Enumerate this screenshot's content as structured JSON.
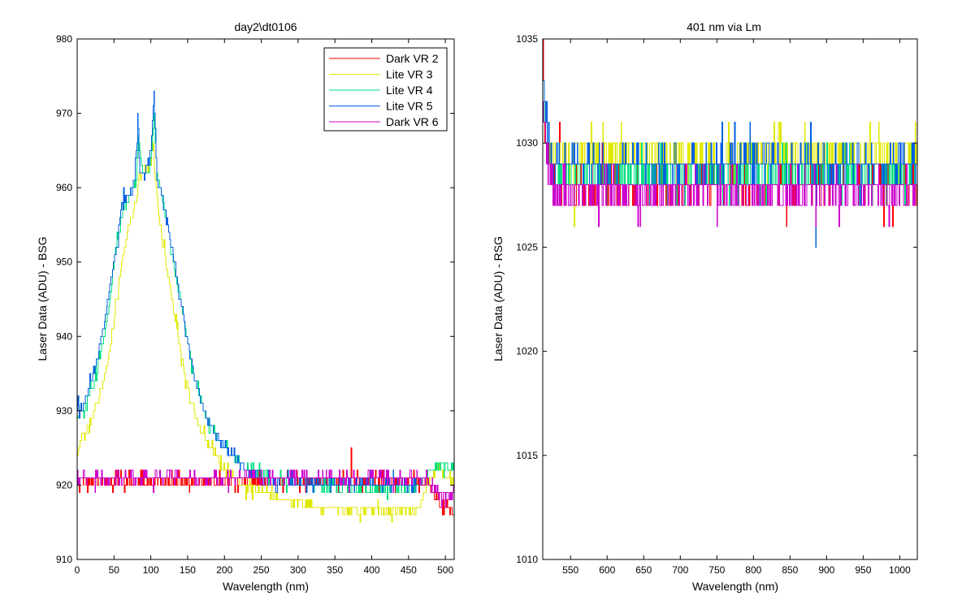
{
  "chart_data": [
    {
      "type": "line",
      "title": "day2\\dt0106",
      "xlabel": "Wavelength (nm)",
      "ylabel": "Laser Data (ADU) - BSG",
      "xlim": [
        0,
        512
      ],
      "ylim": [
        910,
        980
      ],
      "xticks": [
        0,
        50,
        100,
        150,
        200,
        250,
        300,
        350,
        400,
        450,
        500
      ],
      "yticks": [
        910,
        920,
        930,
        940,
        950,
        960,
        970,
        980
      ],
      "grid": false,
      "legend": "top-right",
      "series": [
        {
          "name": "Dark VR 2",
          "color": "#ff0000",
          "kind": "noise",
          "x": [
            0,
            460,
            475,
            490,
            512
          ],
          "y": [
            920.5,
            920.7,
            920.5,
            917.5,
            916.5
          ],
          "amp": 0.6,
          "seed": 7,
          "spikes": [
            [
              372,
              925
            ]
          ]
        },
        {
          "name": "Lite VR 3",
          "color": "#e0e800",
          "kind": "peak",
          "x": [
            0,
            5,
            10,
            20,
            30,
            40,
            50,
            60,
            70,
            80,
            85,
            90,
            95,
            100,
            103,
            105,
            110,
            115,
            120,
            130,
            140,
            150,
            160,
            175,
            200,
            225,
            250,
            275,
            300,
            325,
            350,
            400,
            450,
            465,
            470,
            480,
            490,
            500,
            512
          ],
          "y": [
            924,
            926.5,
            927,
            929,
            932,
            936,
            942,
            950,
            955,
            958,
            962,
            963,
            962,
            963,
            967,
            962,
            957,
            953,
            950,
            944,
            938,
            933,
            929,
            926,
            922,
            920,
            919,
            918,
            917.5,
            917,
            916.8,
            916.5,
            916.5,
            917,
            919,
            921,
            923,
            921,
            920.5
          ],
          "amp": 0.5,
          "seed": 11
        },
        {
          "name": "Lite VR 4",
          "color": "#00e080",
          "kind": "peak",
          "x": [
            0,
            5,
            10,
            20,
            30,
            40,
            50,
            60,
            70,
            80,
            83,
            88,
            95,
            100,
            104,
            108,
            115,
            120,
            130,
            140,
            150,
            160,
            175,
            200,
            225,
            250,
            275,
            300,
            350,
            400,
            450,
            465,
            470,
            480,
            490,
            500,
            512
          ],
          "y": [
            929,
            930,
            930.5,
            933,
            937,
            942,
            950,
            956,
            959,
            961,
            967,
            962,
            962,
            964,
            970,
            962,
            959,
            956,
            950,
            945,
            939,
            934,
            929,
            925,
            922.5,
            921.5,
            920.5,
            920,
            919.8,
            919.5,
            919.5,
            920,
            921,
            922,
            922.5,
            922.5,
            922.5
          ],
          "amp": 0.5,
          "seed": 23
        },
        {
          "name": "Lite VR 5",
          "color": "#0060e0",
          "kind": "peak",
          "x": [
            0,
            1,
            3,
            8,
            15,
            25,
            35,
            45,
            55,
            60,
            70,
            78,
            82,
            85,
            90,
            95,
            100,
            104,
            108,
            115,
            120,
            130,
            140,
            150,
            160,
            175,
            200,
            230,
            260,
            300,
            350,
            400,
            450,
            460
          ],
          "y": [
            930,
            932,
            929.5,
            930.5,
            933,
            936,
            941,
            947,
            953,
            958,
            959,
            961,
            970,
            962,
            962,
            963,
            965,
            973,
            961,
            959,
            957,
            951,
            945,
            939,
            934,
            929,
            925,
            922,
            921,
            920.5,
            920.3,
            920.2,
            920.2,
            920.2
          ],
          "amp": 0.5,
          "seed": 31
        },
        {
          "name": "Dark VR 6",
          "color": "#cc00cc",
          "kind": "noise",
          "x": [
            0,
            1,
            3,
            460,
            475,
            490,
            500,
            512
          ],
          "y": [
            922.5,
            919.5,
            921,
            921,
            920.5,
            919,
            918.5,
            919
          ],
          "amp": 0.6,
          "seed": 41
        }
      ]
    },
    {
      "type": "line",
      "title": "401 nm via Lm",
      "xlabel": "Wavelength (nm)",
      "ylabel": "Laser Data (ADU) - RSG",
      "xlim": [
        512,
        1024
      ],
      "ylim": [
        1010,
        1035
      ],
      "xticks": [
        550,
        600,
        650,
        700,
        750,
        800,
        850,
        900,
        950,
        1000
      ],
      "yticks": [
        1010,
        1015,
        1020,
        1025,
        1030,
        1035
      ],
      "grid": false,
      "legend": "none",
      "series": [
        {
          "name": "Dark VR 2",
          "color": "#ff0000",
          "kind": "noise",
          "x": [
            512,
            514,
            518,
            525,
            1024
          ],
          "y": [
            1035,
            1031,
            1029.5,
            1028,
            1028
          ],
          "amp": 0.6,
          "seed": 51,
          "spikes": [
            [
              535,
              1031
            ],
            [
              990,
              1026
            ]
          ]
        },
        {
          "name": "Lite VR 3",
          "color": "#e0e800",
          "kind": "noise",
          "x": [
            512,
            518,
            525,
            1024
          ],
          "y": [
            1033,
            1030,
            1029.5,
            1029.5
          ],
          "amp": 0.6,
          "seed": 57,
          "spikes": [
            [
              555,
              1026
            ],
            [
              835,
              1031
            ],
            [
              870,
              1031
            ]
          ]
        },
        {
          "name": "Lite VR 4",
          "color": "#00e080",
          "kind": "noise",
          "x": [
            512,
            518,
            525,
            1024
          ],
          "y": [
            1033,
            1029.5,
            1028.5,
            1028.3
          ],
          "amp": 0.6,
          "seed": 61
        },
        {
          "name": "Lite VR 5",
          "color": "#0060e0",
          "kind": "noise",
          "x": [
            512,
            518,
            525,
            1024
          ],
          "y": [
            1033.5,
            1030,
            1029,
            1029
          ],
          "amp": 0.6,
          "seed": 67,
          "spikes": [
            [
              885,
              1025
            ]
          ]
        },
        {
          "name": "Dark VR 6",
          "color": "#cc00cc",
          "kind": "noise",
          "x": [
            512,
            518,
            525,
            1024
          ],
          "y": [
            1032,
            1029,
            1027.8,
            1027.6
          ],
          "amp": 0.6,
          "seed": 71,
          "spikes": [
            [
              588,
              1026
            ],
            [
              645,
              1026
            ],
            [
              750,
              1026
            ],
            [
              885,
              1026
            ],
            [
              985,
              1026
            ]
          ]
        }
      ]
    }
  ]
}
